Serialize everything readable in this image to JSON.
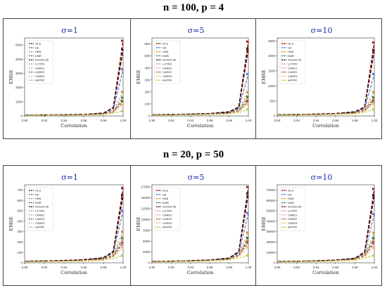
{
  "page": {
    "row1_title": "n = 100, p = 4",
    "row2_title": "n = 20, p = 50"
  },
  "legend_labels": [
    "OLS",
    "HK",
    "HKB",
    "KMR",
    "SCKD0.95",
    "LCTPR",
    "CARE1",
    "CARE2",
    "CARE3",
    "AATPR"
  ],
  "series_colors": [
    "#8b1a1a",
    "#4a6fd0",
    "#d38c2a",
    "#2e7d32",
    "#3a0d0d",
    "#d48ad8",
    "#e8a2a8",
    "#8e5a3c",
    "#f0c070",
    "#b5c83a"
  ],
  "x_ticks": [
    "0.90",
    "0.92",
    "0.94",
    "0.96",
    "0.98",
    "1.00"
  ],
  "x_values": [
    0.9,
    0.92,
    0.94,
    0.96,
    0.98,
    0.99,
    1.0
  ],
  "chart_data": [
    {
      "type": "line",
      "title": "σ=1",
      "xlabel": "Correlation",
      "ylabel": "EMSE",
      "xlim": [
        0.9,
        1.0
      ],
      "ylim": [
        0,
        5500
      ],
      "yticks": [
        "0",
        "1000",
        "2000",
        "3000",
        "4000",
        "5000"
      ],
      "series": [
        {
          "name": "OLS",
          "values": [
            60,
            70,
            85,
            110,
            200,
            600,
            5300
          ]
        },
        {
          "name": "HK",
          "values": [
            55,
            62,
            75,
            95,
            160,
            420,
            3300
          ]
        },
        {
          "name": "HKB",
          "values": [
            50,
            58,
            68,
            85,
            140,
            330,
            1700
          ]
        },
        {
          "name": "KMR",
          "values": [
            48,
            55,
            64,
            80,
            130,
            290,
            1300
          ]
        },
        {
          "name": "SCKD0.95",
          "values": [
            58,
            68,
            82,
            105,
            190,
            560,
            4700
          ]
        },
        {
          "name": "LCTPR",
          "values": [
            45,
            52,
            60,
            75,
            120,
            260,
            1000
          ]
        },
        {
          "name": "CARE1",
          "values": [
            47,
            54,
            62,
            78,
            125,
            280,
            1150
          ]
        },
        {
          "name": "CARE2",
          "values": [
            46,
            53,
            61,
            77,
            122,
            270,
            1050
          ]
        },
        {
          "name": "CARE3",
          "values": [
            44,
            50,
            58,
            72,
            115,
            240,
            800
          ]
        },
        {
          "name": "AATPR",
          "values": [
            40,
            45,
            52,
            64,
            100,
            190,
            350
          ]
        }
      ]
    },
    {
      "type": "line",
      "title": "σ=5",
      "xlabel": "Correlation",
      "ylabel": "EMSE",
      "xlim": [
        0.9,
        1.0
      ],
      "ylim": [
        0,
        650
      ],
      "yticks": [
        "0",
        "100",
        "200",
        "300",
        "400",
        "500",
        "600"
      ],
      "series": [
        {
          "name": "OLS",
          "values": [
            10,
            12,
            15,
            20,
            35,
            75,
            620
          ]
        },
        {
          "name": "HK",
          "values": [
            9,
            11,
            14,
            18,
            30,
            60,
            350
          ]
        },
        {
          "name": "HKB",
          "values": [
            8,
            10,
            12,
            16,
            26,
            50,
            200
          ]
        },
        {
          "name": "KMR",
          "values": [
            8,
            9,
            11,
            15,
            24,
            45,
            160
          ]
        },
        {
          "name": "SCKD0.95",
          "values": [
            10,
            12,
            15,
            19,
            33,
            70,
            560
          ]
        },
        {
          "name": "LCTPR",
          "values": [
            7,
            9,
            11,
            14,
            22,
            40,
            120
          ]
        },
        {
          "name": "CARE1",
          "values": [
            8,
            9,
            11,
            14,
            23,
            42,
            140
          ]
        },
        {
          "name": "CARE2",
          "values": [
            7,
            9,
            10,
            13,
            22,
            40,
            125
          ]
        },
        {
          "name": "CARE3",
          "values": [
            7,
            8,
            10,
            13,
            20,
            36,
            100
          ]
        },
        {
          "name": "AATPR",
          "values": [
            6,
            7,
            9,
            11,
            17,
            28,
            55
          ]
        }
      ]
    },
    {
      "type": "line",
      "title": "σ=10",
      "xlabel": "Correlation",
      "ylabel": "EMSE",
      "xlim": [
        0.9,
        1.0
      ],
      "ylim": [
        0,
        2600
      ],
      "yticks": [
        "0",
        "500",
        "1000",
        "1500",
        "2000",
        "2500"
      ],
      "series": [
        {
          "name": "OLS",
          "values": [
            40,
            48,
            60,
            80,
            140,
            300,
            2450
          ]
        },
        {
          "name": "HK",
          "values": [
            36,
            44,
            54,
            72,
            120,
            250,
            1400
          ]
        },
        {
          "name": "HKB",
          "values": [
            33,
            40,
            50,
            66,
            105,
            210,
            800
          ]
        },
        {
          "name": "KMR",
          "values": [
            32,
            38,
            47,
            62,
            98,
            190,
            620
          ]
        },
        {
          "name": "SCKD0.95",
          "values": [
            39,
            47,
            58,
            78,
            135,
            285,
            2200
          ]
        },
        {
          "name": "LCTPR",
          "values": [
            30,
            36,
            44,
            58,
            90,
            170,
            480
          ]
        },
        {
          "name": "CARE1",
          "values": [
            31,
            37,
            46,
            60,
            94,
            180,
            560
          ]
        },
        {
          "name": "CARE2",
          "values": [
            30,
            36,
            45,
            59,
            92,
            175,
            520
          ]
        },
        {
          "name": "CARE3",
          "values": [
            28,
            34,
            42,
            55,
            85,
            155,
            400
          ]
        },
        {
          "name": "AATPR",
          "values": [
            25,
            30,
            37,
            48,
            72,
            120,
            220
          ]
        }
      ]
    },
    {
      "type": "line",
      "title": "σ=1",
      "xlabel": "Correlation",
      "ylabel": "EMSE",
      "xlim": [
        0.9,
        1.0
      ],
      "ylim": [
        0,
        750
      ],
      "yticks": [
        "0",
        "100",
        "200",
        "300",
        "400",
        "500",
        "600",
        "700"
      ],
      "series": [
        {
          "name": "OLS",
          "values": [
            15,
            18,
            22,
            30,
            50,
            110,
            720
          ]
        },
        {
          "name": "HK",
          "values": [
            14,
            17,
            20,
            27,
            45,
            95,
            500
          ]
        },
        {
          "name": "HKB",
          "values": [
            13,
            15,
            18,
            24,
            40,
            80,
            300
          ]
        },
        {
          "name": "KMR",
          "values": [
            12,
            14,
            17,
            22,
            36,
            70,
            240
          ]
        },
        {
          "name": "SCKD0.95",
          "values": [
            15,
            18,
            22,
            29,
            48,
            105,
            650
          ]
        },
        {
          "name": "LCTPR",
          "values": [
            11,
            13,
            16,
            21,
            33,
            62,
            180
          ]
        },
        {
          "name": "CARE1",
          "values": [
            12,
            14,
            17,
            22,
            35,
            66,
            210
          ]
        },
        {
          "name": "CARE2",
          "values": [
            11,
            13,
            16,
            21,
            34,
            64,
            195
          ]
        },
        {
          "name": "CARE3",
          "values": [
            10,
            12,
            15,
            19,
            30,
            56,
            150
          ]
        },
        {
          "name": "AATPR",
          "values": [
            9,
            11,
            13,
            16,
            25,
            42,
            70
          ]
        }
      ]
    },
    {
      "type": "line",
      "title": "σ=5",
      "xlabel": "Correlation",
      "ylabel": "EMSE",
      "xlim": [
        0.9,
        1.0
      ],
      "ylim": [
        0,
        18000
      ],
      "yticks": [
        "0",
        "2500",
        "5000",
        "7500",
        "10000",
        "12500",
        "15000",
        "17500"
      ],
      "series": [
        {
          "name": "OLS",
          "values": [
            300,
            380,
            480,
            650,
            1100,
            2600,
            17500
          ]
        },
        {
          "name": "HK",
          "values": [
            280,
            350,
            440,
            600,
            1000,
            2200,
            11500
          ]
        },
        {
          "name": "HKB",
          "values": [
            260,
            320,
            400,
            540,
            900,
            1900,
            7000
          ]
        },
        {
          "name": "KMR",
          "values": [
            250,
            310,
            385,
            520,
            850,
            1750,
            5800
          ]
        },
        {
          "name": "SCKD0.95",
          "values": [
            295,
            370,
            470,
            640,
            1080,
            2500,
            16000
          ]
        },
        {
          "name": "LCTPR",
          "values": [
            235,
            290,
            360,
            490,
            790,
            1600,
            4500
          ]
        },
        {
          "name": "CARE1",
          "values": [
            245,
            300,
            375,
            505,
            820,
            1700,
            5200
          ]
        },
        {
          "name": "CARE2",
          "values": [
            240,
            295,
            368,
            498,
            805,
            1650,
            4900
          ]
        },
        {
          "name": "CARE3",
          "values": [
            225,
            280,
            348,
            470,
            760,
            1500,
            3700
          ]
        },
        {
          "name": "AATPR",
          "values": [
            200,
            245,
            305,
            410,
            650,
            1150,
            1700
          ]
        }
      ]
    },
    {
      "type": "line",
      "title": "σ=10",
      "xlabel": "Correlation",
      "ylabel": "EMSE",
      "xlim": [
        0.9,
        1.0
      ],
      "ylim": [
        0,
        75000
      ],
      "yticks": [
        "0",
        "10000",
        "20000",
        "30000",
        "40000",
        "50000",
        "60000",
        "70000"
      ],
      "series": [
        {
          "name": "OLS",
          "values": [
            1200,
            1500,
            1900,
            2600,
            4400,
            10500,
            71000
          ]
        },
        {
          "name": "HK",
          "values": [
            1100,
            1400,
            1750,
            2400,
            4000,
            8800,
            47000
          ]
        },
        {
          "name": "HKB",
          "values": [
            1000,
            1280,
            1600,
            2150,
            3600,
            7600,
            29000
          ]
        },
        {
          "name": "KMR",
          "values": [
            980,
            1230,
            1540,
            2080,
            3400,
            7000,
            24000
          ]
        },
        {
          "name": "SCKD0.95",
          "values": [
            1180,
            1480,
            1870,
            2560,
            4300,
            10000,
            65000
          ]
        },
        {
          "name": "LCTPR",
          "values": [
            940,
            1160,
            1440,
            1960,
            3160,
            6400,
            18500
          ]
        },
        {
          "name": "CARE1",
          "values": [
            960,
            1200,
            1500,
            2020,
            3280,
            6800,
            21500
          ]
        },
        {
          "name": "CARE2",
          "values": [
            950,
            1180,
            1470,
            1990,
            3220,
            6600,
            20000
          ]
        },
        {
          "name": "CARE3",
          "values": [
            900,
            1120,
            1390,
            1880,
            3040,
            6000,
            15000
          ]
        },
        {
          "name": "AATPR",
          "values": [
            800,
            980,
            1220,
            1640,
            2600,
            4600,
            7000
          ]
        }
      ]
    }
  ]
}
